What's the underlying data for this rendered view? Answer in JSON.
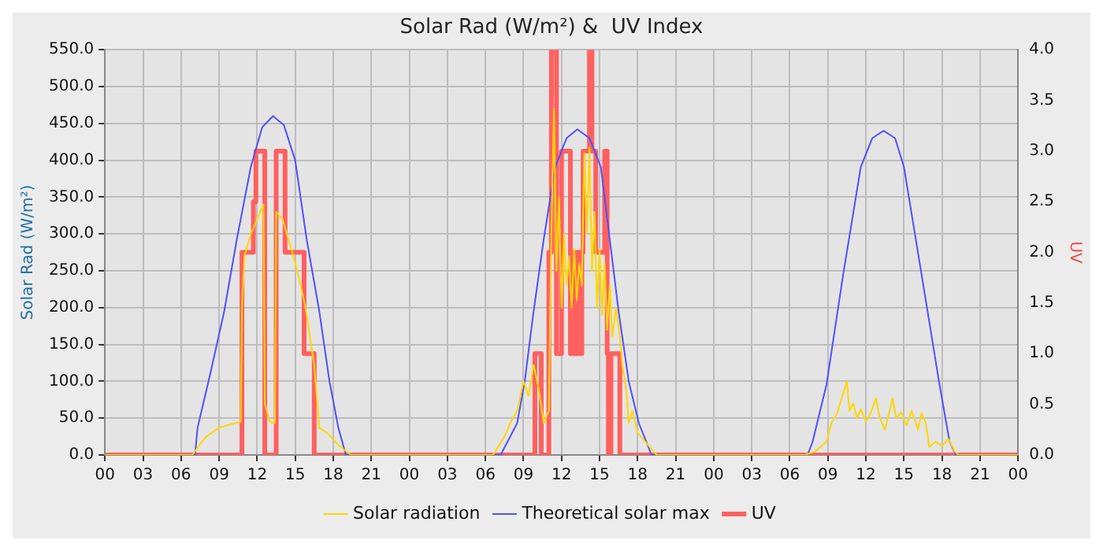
{
  "chart_data": {
    "type": "line",
    "title": "Solar Rad (W/m²) &  UV Index",
    "ylabel": "Solar Rad (W/m²)",
    "y2label": "UV",
    "xlim": [
      0,
      72
    ],
    "xticks": [
      {
        "value": 0,
        "label": "00"
      },
      {
        "value": 3,
        "label": "03"
      },
      {
        "value": 6,
        "label": "06"
      },
      {
        "value": 9,
        "label": "09"
      },
      {
        "value": 12,
        "label": "12"
      },
      {
        "value": 15,
        "label": "15"
      },
      {
        "value": 18,
        "label": "18"
      },
      {
        "value": 21,
        "label": "21"
      },
      {
        "value": 24,
        "label": "00"
      },
      {
        "value": 27,
        "label": "03"
      },
      {
        "value": 30,
        "label": "06"
      },
      {
        "value": 33,
        "label": "09"
      },
      {
        "value": 36,
        "label": "12"
      },
      {
        "value": 39,
        "label": "15"
      },
      {
        "value": 42,
        "label": "18"
      },
      {
        "value": 45,
        "label": "21"
      },
      {
        "value": 48,
        "label": "00"
      },
      {
        "value": 51,
        "label": "03"
      },
      {
        "value": 54,
        "label": "06"
      },
      {
        "value": 57,
        "label": "09"
      },
      {
        "value": 60,
        "label": "12"
      },
      {
        "value": 63,
        "label": "15"
      },
      {
        "value": 66,
        "label": "18"
      },
      {
        "value": 69,
        "label": "21"
      },
      {
        "value": 72,
        "label": "00"
      }
    ],
    "ylim": [
      0,
      550
    ],
    "yticks": [
      {
        "value": 0,
        "label": "0.0"
      },
      {
        "value": 50,
        "label": "50.0"
      },
      {
        "value": 100,
        "label": "100.0"
      },
      {
        "value": 150,
        "label": "150.0"
      },
      {
        "value": 200,
        "label": "200.0"
      },
      {
        "value": 250,
        "label": "250.0"
      },
      {
        "value": 300,
        "label": "300.0"
      },
      {
        "value": 350,
        "label": "350.0"
      },
      {
        "value": 400,
        "label": "400.0"
      },
      {
        "value": 450,
        "label": "450.0"
      },
      {
        "value": 500,
        "label": "500.0"
      },
      {
        "value": 550,
        "label": "550.0"
      }
    ],
    "y2lim": [
      0,
      4
    ],
    "y2ticks": [
      {
        "value": 0,
        "label": "0.0"
      },
      0.5,
      {
        "value": 1,
        "label": "1.0"
      },
      1.5,
      {
        "value": 2,
        "label": "2.0"
      },
      2.5,
      {
        "value": 3,
        "label": "3.0"
      },
      3.5,
      {
        "value": 4,
        "label": "4.0"
      }
    ],
    "grid": true,
    "legend": "bottom",
    "marker": "none",
    "line_style": "solid",
    "series": [
      {
        "name": "Solar radiation",
        "color": "#ffd700",
        "x": [
          0,
          6.9,
          7.5,
          8,
          9,
          10,
          10.7,
          10.8,
          11,
          11.5,
          12,
          12.5,
          12.6,
          13,
          13.4,
          13.5,
          14,
          14.8,
          15.3,
          15.8,
          16.5,
          16.9,
          17.5,
          18.5,
          19.4,
          30.6,
          31.5,
          32,
          32.5,
          33,
          33.4,
          33.8,
          34.2,
          34.6,
          35,
          35.2,
          35.4,
          35.6,
          35.8,
          36,
          36.2,
          36.4,
          36.6,
          36.8,
          37,
          37.2,
          37.4,
          37.6,
          37.8,
          38,
          38.2,
          38.4,
          38.6,
          38.8,
          39,
          39.2,
          39.4,
          39.6,
          39.8,
          40,
          40.3,
          40.6,
          40.8,
          41.1,
          41.3,
          41.6,
          42,
          42.5,
          43,
          43.5,
          55.2,
          56,
          56.9,
          57.3,
          57.7,
          58.1,
          58.5,
          58.7,
          59,
          59.3,
          59.6,
          60,
          60.4,
          60.8,
          61.1,
          61.5,
          61.8,
          62.1,
          62.4,
          62.8,
          63.2,
          63.6,
          63.9,
          64.1,
          64.4,
          64.7,
          65,
          65.5,
          66,
          66.5,
          67,
          67.3,
          72
        ],
        "values": [
          0,
          0,
          15,
          25,
          37,
          42,
          45,
          200,
          270,
          300,
          320,
          340,
          70,
          45,
          43,
          330,
          320,
          273,
          240,
          201,
          122,
          37,
          30,
          12,
          0,
          0,
          25,
          45,
          60,
          100,
          80,
          122,
          90,
          43,
          60,
          300,
          470,
          250,
          350,
          200,
          300,
          230,
          270,
          200,
          280,
          210,
          260,
          230,
          410,
          300,
          417,
          250,
          330,
          200,
          280,
          190,
          260,
          170,
          230,
          160,
          200,
          161,
          120,
          90,
          43,
          60,
          30,
          20,
          10,
          0,
          0,
          5,
          18,
          44,
          55,
          77,
          100,
          60,
          70,
          50,
          62,
          45,
          58,
          77,
          50,
          34,
          55,
          77,
          50,
          58,
          40,
          60,
          45,
          34,
          57,
          45,
          11,
          18,
          12,
          22,
          5,
          0,
          0
        ]
      },
      {
        "name": "Theoretical solar max",
        "color": "#5050ff",
        "x": [
          0,
          7.1,
          7.3,
          8.3,
          9.4,
          10.4,
          11.5,
          12.4,
          13.25,
          14.1,
          15,
          15.9,
          16.9,
          17.7,
          18.4,
          19,
          31.2,
          32.5,
          33.1,
          33.8,
          34.6,
          35.5,
          36.4,
          37.25,
          38.2,
          39.1,
          39.8,
          40.5,
          41.3,
          42.1,
          43.1,
          55.4,
          55.8,
          56.9,
          58.2,
          59.6,
          60.5,
          61.4,
          62.3,
          63,
          64.4,
          65.8,
          66.6,
          67.1,
          72
        ],
        "values": [
          0,
          0,
          37,
          110,
          195,
          293,
          391,
          445,
          460,
          448,
          400,
          293,
          195,
          100,
          37,
          0,
          0,
          43,
          100,
          195,
          293,
          391,
          430,
          442,
          430,
          391,
          293,
          195,
          100,
          43,
          0,
          0,
          18,
          96,
          244,
          391,
          430,
          440,
          430,
          391,
          244,
          96,
          18,
          0,
          0
        ]
      },
      {
        "name": "UV",
        "type": "step",
        "axis": "y2",
        "color": "#ff6060",
        "x": [
          0,
          10.8,
          11.7,
          11.9,
          12.6,
          13.5,
          14.2,
          15.7,
          16.5,
          33.9,
          34.4,
          35.0,
          35.2,
          35.6,
          36.0,
          36.7,
          36.8,
          37.0,
          37.2,
          37.4,
          37.6,
          37.7,
          38.2,
          38.4,
          38.7,
          39.4,
          39.6,
          39.7,
          39.9,
          40.6,
          72
        ],
        "values": [
          0,
          2,
          2.5,
          3,
          0,
          3,
          2,
          1,
          0,
          1,
          0,
          2,
          4,
          1,
          3,
          1,
          2,
          1,
          2,
          1,
          2,
          3,
          4,
          3,
          2,
          3,
          1,
          0,
          1,
          0,
          0
        ]
      }
    ]
  }
}
